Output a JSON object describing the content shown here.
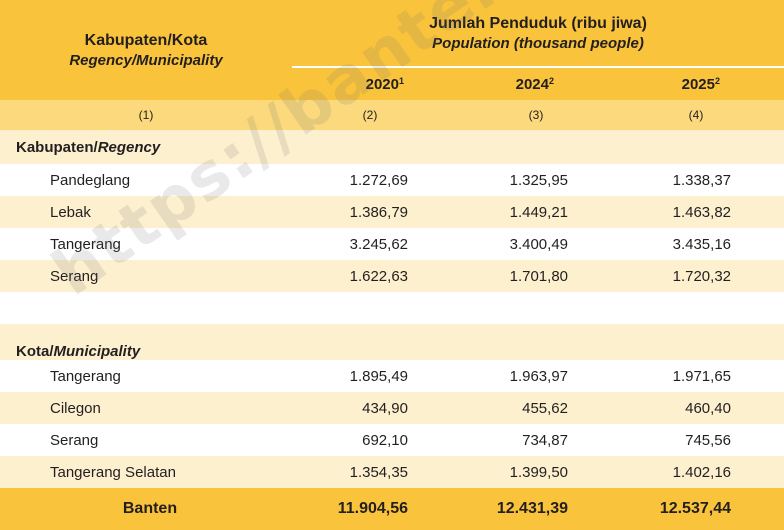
{
  "header": {
    "col1_title": "Kabupaten/Kota",
    "col1_subtitle": "Regency/Municipality",
    "group_title": "Jumlah Penduduk (ribu jiwa)",
    "group_subtitle": "Population (thousand people)",
    "years": [
      {
        "year": "2020",
        "note": "1"
      },
      {
        "year": "2024",
        "note": "2"
      },
      {
        "year": "2025",
        "note": "2"
      }
    ],
    "col_numbers": [
      "(1)",
      "(2)",
      "(3)",
      "(4)"
    ]
  },
  "sections": [
    {
      "label_main": "Kabupaten/",
      "label_en": "Regency",
      "rows": [
        {
          "name": "Pandeglang",
          "values": [
            "1.272,69",
            "1.325,95",
            "1.338,37"
          ]
        },
        {
          "name": "Lebak",
          "values": [
            "1.386,79",
            "1.449,21",
            "1.463,82"
          ]
        },
        {
          "name": "Tangerang",
          "values": [
            "3.245,62",
            "3.400,49",
            "3.435,16"
          ]
        },
        {
          "name": "Serang",
          "values": [
            "1.622,63",
            "1.701,80",
            "1.720,32"
          ]
        }
      ]
    },
    {
      "label_main": "Kota/",
      "label_en": "Municipality",
      "rows": [
        {
          "name": "Tangerang",
          "values": [
            "1.895,49",
            "1.963,97",
            "1.971,65"
          ]
        },
        {
          "name": "Cilegon",
          "values": [
            "434,90",
            "455,62",
            "460,40"
          ]
        },
        {
          "name": "Serang",
          "values": [
            "692,10",
            "734,87",
            "745,56"
          ]
        },
        {
          "name": "Tangerang Selatan",
          "values": [
            "1.354,35",
            "1.399,50",
            "1.402,16"
          ]
        }
      ]
    }
  ],
  "total": {
    "name": "Banten",
    "values": [
      "11.904,56",
      "12.431,39",
      "12.537,44"
    ]
  },
  "watermark": "https://banten.bps.go.id",
  "colors": {
    "header": "#f9c33b",
    "subheader": "#fbd97c",
    "stripe": "#fdf0cf",
    "total": "#f9c33b"
  }
}
